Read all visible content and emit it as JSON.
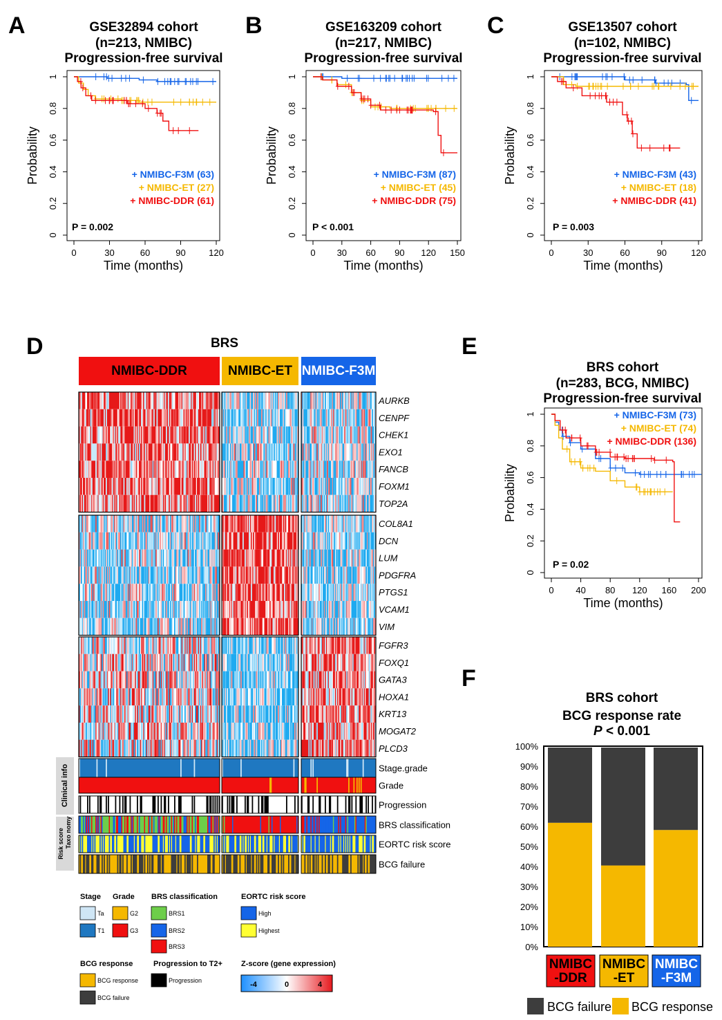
{
  "colors": {
    "f3m": "#1565e8",
    "et": "#f5b800",
    "ddr": "#f01010",
    "dark": "#3d3d3d",
    "stage_ta": "#cfe6f5",
    "stage_t1": "#1f78c1",
    "brs1": "#6dce4a",
    "brs2": "#1565e8",
    "brs3": "#f01010",
    "eortc_high": "#1565e8",
    "eortc_highest": "#ffff33",
    "bcg_resp": "#f5b800",
    "bcg_fail": "#3d3d3d"
  },
  "panel_labels": {
    "a": "A",
    "b": "B",
    "c": "C",
    "d": "D",
    "e": "E",
    "f": "F"
  },
  "axis": {
    "probability": "Probability",
    "time": "Time (months)"
  },
  "chart_data": [
    {
      "id": "A",
      "type": "line",
      "title": [
        "GSE32894 cohort",
        "(n=213, NMIBC)",
        "Progression-free survival"
      ],
      "xlabel": "Time (months)",
      "ylabel": "Probability",
      "xlim": [
        0,
        120
      ],
      "xticks": [
        0,
        30,
        60,
        90,
        120
      ],
      "ylim": [
        0,
        1
      ],
      "yticks": [
        "0",
        "0.2",
        "0.4",
        "0.6",
        "0.8",
        "1"
      ],
      "pvalue": "P = 0.002",
      "series": [
        {
          "name": "+ NMIBC-F3M (63)",
          "color": "#1565e8",
          "steps": [
            [
              0,
              1
            ],
            [
              28,
              0.99
            ],
            [
              55,
              0.98
            ],
            [
              70,
              0.97
            ],
            [
              120,
              0.97
            ]
          ],
          "end": 120
        },
        {
          "name": "+ NMIBC-ET (27)",
          "color": "#f5b800",
          "steps": [
            [
              0,
              1
            ],
            [
              4,
              0.96
            ],
            [
              8,
              0.92
            ],
            [
              12,
              0.88
            ],
            [
              18,
              0.86
            ],
            [
              40,
              0.85
            ],
            [
              55,
              0.84
            ],
            [
              120,
              0.84
            ]
          ],
          "end": 120
        },
        {
          "name": "+ NMIBC-DDR (61)",
          "color": "#f01010",
          "steps": [
            [
              0,
              1
            ],
            [
              3,
              0.97
            ],
            [
              6,
              0.93
            ],
            [
              10,
              0.88
            ],
            [
              15,
              0.85
            ],
            [
              45,
              0.83
            ],
            [
              60,
              0.8
            ],
            [
              70,
              0.77
            ],
            [
              75,
              0.72
            ],
            [
              80,
              0.66
            ],
            [
              105,
              0.66
            ]
          ],
          "end": 105
        }
      ]
    },
    {
      "id": "B",
      "type": "line",
      "title": [
        "GSE163209 cohort",
        "(n=217, NMIBC)",
        "Progression-free survival"
      ],
      "xlabel": "Time (months)",
      "ylabel": "Probability",
      "xlim": [
        0,
        150
      ],
      "xticks": [
        0,
        30,
        60,
        90,
        120,
        150
      ],
      "ylim": [
        0,
        1
      ],
      "yticks": [
        "0",
        "0.2",
        "0.4",
        "0.6",
        "0.8",
        "1"
      ],
      "pvalue": "P < 0.001",
      "series": [
        {
          "name": "+ NMIBC-F3M (87)",
          "color": "#1565e8",
          "steps": [
            [
              0,
              1
            ],
            [
              30,
              0.99
            ],
            [
              150,
              0.99
            ]
          ],
          "end": 150
        },
        {
          "name": "+ NMIBC-ET (45)",
          "color": "#f5b800",
          "steps": [
            [
              0,
              1
            ],
            [
              10,
              0.98
            ],
            [
              25,
              0.95
            ],
            [
              40,
              0.9
            ],
            [
              50,
              0.85
            ],
            [
              60,
              0.81
            ],
            [
              80,
              0.8
            ],
            [
              150,
              0.8
            ]
          ],
          "end": 150
        },
        {
          "name": "+ NMIBC-DDR (75)",
          "color": "#f01010",
          "steps": [
            [
              0,
              1
            ],
            [
              10,
              0.98
            ],
            [
              25,
              0.94
            ],
            [
              40,
              0.9
            ],
            [
              50,
              0.86
            ],
            [
              60,
              0.82
            ],
            [
              70,
              0.79
            ],
            [
              125,
              0.78
            ],
            [
              130,
              0.63
            ],
            [
              133,
              0.52
            ],
            [
              150,
              0.52
            ]
          ],
          "end": 150
        }
      ]
    },
    {
      "id": "C",
      "type": "line",
      "title": [
        "GSE13507 cohort",
        "(n=102, NMIBC)",
        "Progression-free survival"
      ],
      "xlabel": "Time (months)",
      "ylabel": "Probability",
      "xlim": [
        0,
        120
      ],
      "xticks": [
        0,
        30,
        60,
        90,
        120
      ],
      "ylim": [
        0,
        1
      ],
      "yticks": [
        "0",
        "0.2",
        "0.4",
        "0.6",
        "0.8",
        "1"
      ],
      "pvalue": "P = 0.003",
      "series": [
        {
          "name": "+ NMIBC-F3M (43)",
          "color": "#1565e8",
          "steps": [
            [
              0,
              1
            ],
            [
              60,
              0.98
            ],
            [
              85,
              0.96
            ],
            [
              110,
              0.95
            ],
            [
              112,
              0.85
            ],
            [
              120,
              0.85
            ]
          ],
          "end": 120
        },
        {
          "name": "+ NMIBC-ET (18)",
          "color": "#f5b800",
          "steps": [
            [
              0,
              1
            ],
            [
              10,
              0.95
            ],
            [
              20,
              0.94
            ],
            [
              120,
              0.94
            ]
          ],
          "end": 120
        },
        {
          "name": "+ NMIBC-DDR (41)",
          "color": "#f01010",
          "steps": [
            [
              0,
              1
            ],
            [
              5,
              0.97
            ],
            [
              12,
              0.93
            ],
            [
              25,
              0.88
            ],
            [
              45,
              0.84
            ],
            [
              58,
              0.76
            ],
            [
              62,
              0.72
            ],
            [
              66,
              0.64
            ],
            [
              70,
              0.55
            ],
            [
              105,
              0.55
            ]
          ],
          "end": 105
        }
      ]
    },
    {
      "id": "E",
      "type": "line",
      "title": [
        "BRS cohort",
        "(n=283, BCG, NMIBC)",
        "Progression-free survival"
      ],
      "xlabel": "Time (months)",
      "ylabel": "Probability",
      "xlim": [
        0,
        200
      ],
      "xticks": [
        0,
        40,
        80,
        120,
        160,
        200
      ],
      "ylim": [
        0,
        1
      ],
      "yticks": [
        "0",
        "0.2",
        "0.4",
        "0.6",
        "0.8",
        "1"
      ],
      "pvalue": "P = 0.02",
      "series": [
        {
          "name": "+ NMIBC-F3M (73)",
          "color": "#1565e8",
          "steps": [
            [
              0,
              1
            ],
            [
              5,
              0.95
            ],
            [
              10,
              0.9
            ],
            [
              15,
              0.86
            ],
            [
              25,
              0.82
            ],
            [
              40,
              0.78
            ],
            [
              60,
              0.72
            ],
            [
              80,
              0.66
            ],
            [
              100,
              0.63
            ],
            [
              120,
              0.62
            ],
            [
              200,
              0.62
            ]
          ],
          "end": 205
        },
        {
          "name": "+ NMIBC-ET (74)",
          "color": "#f5b800",
          "steps": [
            [
              0,
              1
            ],
            [
              5,
              0.93
            ],
            [
              10,
              0.85
            ],
            [
              15,
              0.78
            ],
            [
              25,
              0.7
            ],
            [
              40,
              0.66
            ],
            [
              60,
              0.64
            ],
            [
              80,
              0.58
            ],
            [
              100,
              0.54
            ],
            [
              120,
              0.51
            ],
            [
              165,
              0.51
            ]
          ],
          "end": 165
        },
        {
          "name": "+ NMIBC-DDR (136)",
          "color": "#f01010",
          "steps": [
            [
              0,
              1
            ],
            [
              5,
              0.96
            ],
            [
              12,
              0.9
            ],
            [
              20,
              0.85
            ],
            [
              40,
              0.8
            ],
            [
              60,
              0.76
            ],
            [
              80,
              0.73
            ],
            [
              100,
              0.72
            ],
            [
              140,
              0.71
            ],
            [
              165,
              0.7
            ],
            [
              167,
              0.32
            ],
            [
              175,
              0.32
            ]
          ],
          "end": 175
        }
      ]
    },
    {
      "id": "F",
      "type": "bar",
      "title": [
        "BRS cohort",
        "BCG response rate"
      ],
      "pvalue_italic": "P",
      "pvalue_rest": " < 0.001",
      "categories": [
        "NMIBC\n-DDR",
        "NMIBC\n-ET",
        "NMIBC\n-F3M"
      ],
      "category_colors": [
        "#f01010",
        "#f5b800",
        "#1565e8"
      ],
      "category_text_colors": [
        "#000000",
        "#000000",
        "#ffffff"
      ],
      "series": [
        {
          "name": "BCG response",
          "color": "#f5b800",
          "values": [
            61.8,
            40.5,
            58.2
          ]
        },
        {
          "name": "BCG failure",
          "color": "#3d3d3d",
          "values": [
            38.2,
            59.5,
            41.8
          ]
        }
      ],
      "ylim": [
        0,
        100
      ],
      "yticks": [
        "0%",
        "10%",
        "20%",
        "30%",
        "40%",
        "50%",
        "60%",
        "70%",
        "80%",
        "90%",
        "100%"
      ],
      "legend": [
        "BCG failure",
        "BCG response"
      ]
    }
  ],
  "heatmap": {
    "title": "BRS",
    "groups": [
      {
        "label": "NMIBC-DDR",
        "color": "#f01010",
        "text_color": "#000000",
        "n": 136
      },
      {
        "label": "NMIBC-ET",
        "color": "#f5b800",
        "text_color": "#000000",
        "n": 74
      },
      {
        "label": "NMIBC-F3M",
        "color": "#1565e8",
        "text_color": "#ffffff",
        "n": 73
      }
    ],
    "gene_blocks": [
      {
        "genes": [
          "AURKB",
          "CENPF",
          "CHEK1",
          "EXO1",
          "FANCB",
          "FOXM1",
          "TOP2A"
        ],
        "bias": [
          0.7,
          -0.4,
          -0.3
        ]
      },
      {
        "genes": [
          "COL8A1",
          "DCN",
          "LUM",
          "PDGFRA",
          "PTGS1",
          "VCAM1",
          "VIM"
        ],
        "bias": [
          -0.4,
          0.85,
          -0.45
        ]
      },
      {
        "genes": [
          "FGFR3",
          "FOXQ1",
          "GATA3",
          "HOXA1",
          "KRT13",
          "MOGAT2",
          "PLCD3"
        ],
        "bias": [
          0.1,
          -0.6,
          0.6
        ]
      }
    ],
    "tracks": [
      {
        "label": "Stage.grade",
        "key": "stage"
      },
      {
        "label": "Grade",
        "key": "grade"
      },
      {
        "label": "Progression",
        "key": "progression"
      },
      {
        "label": "BRS classification",
        "key": "brs"
      },
      {
        "label": "EORTC risk score",
        "key": "eortc"
      },
      {
        "label": "BCG failure",
        "key": "bcg"
      }
    ],
    "side_labels": {
      "clinical": "Clinical info",
      "taxonomy": "Taxo nomy",
      "risk": "Risk score"
    },
    "legend": {
      "stage": {
        "title": "Stage",
        "items": [
          "Ta",
          "T1"
        ]
      },
      "grade": {
        "title": "Grade",
        "items": [
          "G2",
          "G3"
        ]
      },
      "brs": {
        "title": "BRS classification",
        "items": [
          "BRS1",
          "BRS2",
          "BRS3"
        ]
      },
      "eortc": {
        "title": "EORTC risk score",
        "items": [
          "High",
          "Highest"
        ]
      },
      "bcg": {
        "title": "BCG response",
        "items": [
          "BCG response",
          "BCG failure"
        ]
      },
      "prog": {
        "title": "Progression to T2+",
        "items": [
          "Progression"
        ]
      },
      "z": {
        "title": "Z-score (gene expression)",
        "ticks": [
          "-4",
          "0",
          "4"
        ]
      }
    }
  }
}
